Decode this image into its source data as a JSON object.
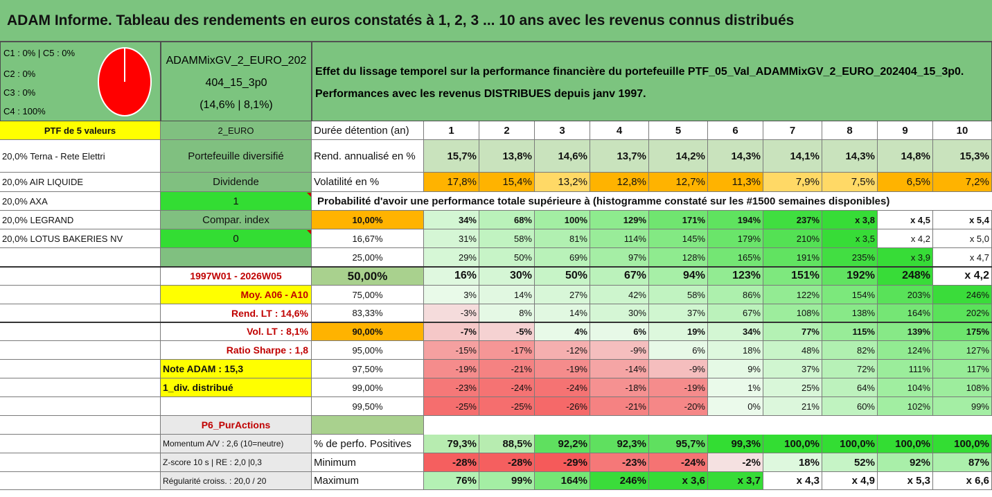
{
  "title": "ADAM Informe. Tableau des rendements en euros constatés à 1, 2, 3 ... 10 ans avec les revenus connus distribués",
  "alloc": {
    "lines": [
      "C1 : 0% | C5 : 0%",
      "C2 : 0%",
      "C3 : 0%",
      "C4 : 100%"
    ],
    "pie_pct": 100
  },
  "fund": {
    "name_line1": "ADAMMixGV_2_EURO_202",
    "name_line2": "404_15_3p0",
    "stats": "(14,6% | 8,1%)"
  },
  "effect": {
    "line1": "Effet du lissage temporel sur la performance financière du portefeuille PTF_05_Val_ADAMMixGV_2_EURO_202404_15_3p0.",
    "line2": "Performances avec les revenus DISTRIBUES depuis janv 1997."
  },
  "left": {
    "ptf_header": "PTF de 5 valeurs",
    "holdings": [
      "20,0% Terna - Rete Elettri",
      "20,0% AIR LIQUIDE",
      "20,0% AXA",
      "20,0% LEGRAND",
      "20,0% LOTUS BAKERIES NV"
    ]
  },
  "mid": {
    "currency": "2_EURO",
    "portfolio": "Portefeuille diversifié",
    "dividend_label": "Dividende",
    "dividend_value": "1",
    "compar": "Compar. index",
    "compar_value": "0",
    "period": "1997W01 - 2026W05",
    "moy": "Moy. A06 - A10",
    "rend_lt": "Rend. LT : 14,6%",
    "vol_lt": "Vol. LT : 8,1%",
    "sharpe": "Ratio Sharpe : 1,8",
    "note": "Note ADAM : 15,3",
    "div": "1_div. distribué",
    "purpose": "P6_PurActions",
    "momentum": "Momentum A/V : 2,6 (10=neutre)",
    "zscore": "Z-score 10 s | RE : 2,0 |0,3",
    "regularite": "Régularité croiss. : 20,0 / 20"
  },
  "table": {
    "duration_label": "Durée détention (an)",
    "years": [
      "1",
      "2",
      "3",
      "4",
      "5",
      "6",
      "7",
      "8",
      "9",
      "10"
    ],
    "rend_label": "Rend. annualisé en %",
    "rend": [
      "15,7%",
      "13,8%",
      "14,6%",
      "13,7%",
      "14,2%",
      "14,3%",
      "14,1%",
      "14,3%",
      "14,8%",
      "15,3%"
    ],
    "vol_label": "Volatilité en %",
    "vol": [
      "17,8%",
      "15,4%",
      "13,2%",
      "12,8%",
      "12,7%",
      "11,3%",
      "7,9%",
      "7,5%",
      "6,5%",
      "7,2%"
    ],
    "prob_header": "Probabilité d'avoir une performance totale supérieure à (histogramme constaté sur les #1500 semaines disponibles)",
    "prob_rows": [
      {
        "p": "10,00%",
        "v": [
          "34%",
          "68%",
          "100%",
          "129%",
          "171%",
          "194%",
          "237%",
          "x 3,8",
          "x 4,5",
          "x 5,4"
        ]
      },
      {
        "p": "16,67%",
        "v": [
          "31%",
          "58%",
          "81%",
          "114%",
          "145%",
          "179%",
          "210%",
          "x 3,5",
          "x 4,2",
          "x 5,0"
        ]
      },
      {
        "p": "25,00%",
        "v": [
          "29%",
          "50%",
          "69%",
          "97%",
          "128%",
          "165%",
          "191%",
          "235%",
          "x 3,9",
          "x 4,7"
        ]
      },
      {
        "p": "50,00%",
        "v": [
          "16%",
          "30%",
          "50%",
          "67%",
          "94%",
          "123%",
          "151%",
          "192%",
          "248%",
          "x 4,2"
        ]
      },
      {
        "p": "75,00%",
        "v": [
          "3%",
          "14%",
          "27%",
          "42%",
          "58%",
          "86%",
          "122%",
          "154%",
          "203%",
          "246%"
        ]
      },
      {
        "p": "83,33%",
        "v": [
          "-3%",
          "8%",
          "14%",
          "30%",
          "37%",
          "67%",
          "108%",
          "138%",
          "164%",
          "202%"
        ]
      },
      {
        "p": "90,00%",
        "v": [
          "-7%",
          "-5%",
          "4%",
          "6%",
          "19%",
          "34%",
          "77%",
          "115%",
          "139%",
          "175%"
        ]
      },
      {
        "p": "95,00%",
        "v": [
          "-15%",
          "-17%",
          "-12%",
          "-9%",
          "6%",
          "18%",
          "48%",
          "82%",
          "124%",
          "127%"
        ]
      },
      {
        "p": "97,50%",
        "v": [
          "-19%",
          "-21%",
          "-19%",
          "-14%",
          "-9%",
          "9%",
          "37%",
          "72%",
          "111%",
          "117%"
        ]
      },
      {
        "p": "99,00%",
        "v": [
          "-23%",
          "-24%",
          "-24%",
          "-18%",
          "-19%",
          "1%",
          "25%",
          "64%",
          "104%",
          "108%"
        ]
      },
      {
        "p": "99,50%",
        "v": [
          "-25%",
          "-25%",
          "-26%",
          "-21%",
          "-20%",
          "0%",
          "21%",
          "60%",
          "102%",
          "99%"
        ]
      }
    ],
    "pos_label": "% de perfo. Positives",
    "pos": [
      "79,3%",
      "88,5%",
      "92,2%",
      "92,3%",
      "95,7%",
      "99,3%",
      "100,0%",
      "100,0%",
      "100,0%",
      "100,0%"
    ],
    "min_label": "Minimum",
    "min": [
      "-28%",
      "-28%",
      "-29%",
      "-23%",
      "-24%",
      "-2%",
      "18%",
      "52%",
      "92%",
      "87%"
    ],
    "max_label": "Maximum",
    "max": [
      "76%",
      "99%",
      "164%",
      "246%",
      "x 3,6",
      "x 3,7",
      "x 4,3",
      "x 4,9",
      "x 5,3",
      "x 6,6"
    ]
  },
  "colors": {
    "green_header": "#7cc47f",
    "mid_green": "#80c080",
    "bright_green": "#33dd33",
    "yellow": "#ffff00",
    "orange": "#ffb300",
    "rend_bg": "#c9e3bd",
    "p50_bg": "#a9d18e"
  }
}
